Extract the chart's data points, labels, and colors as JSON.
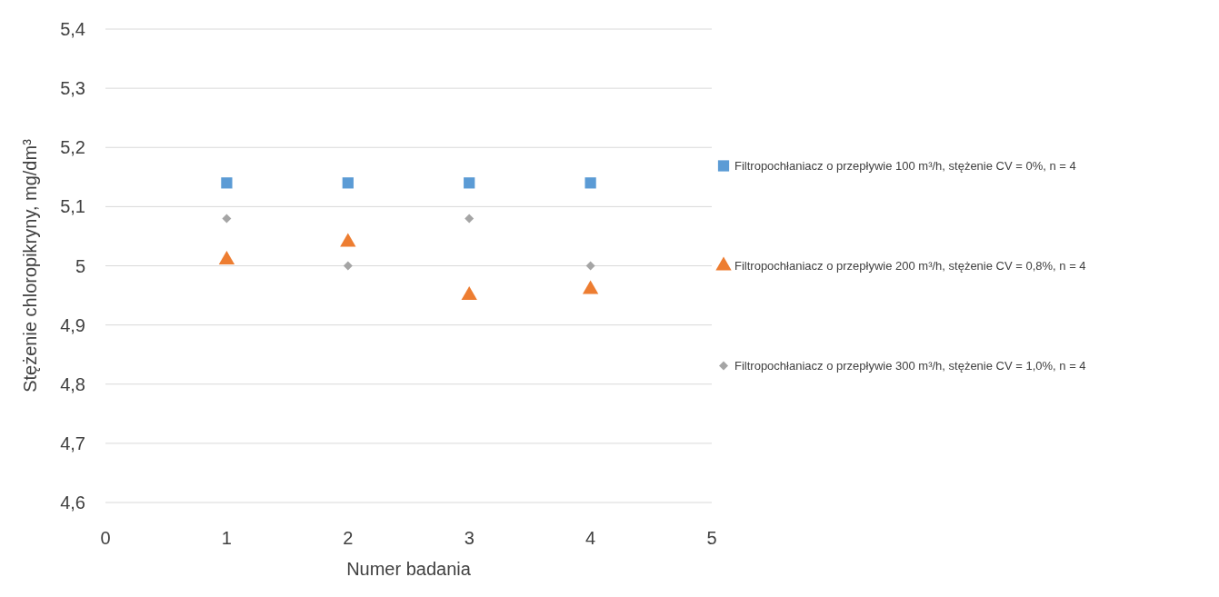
{
  "chart_data": {
    "type": "scatter",
    "xlabel": "Numer badania",
    "ylabel": "Stężenie chloropikryny, mg/dm³",
    "x": [
      1,
      2,
      3,
      4
    ],
    "series": [
      {
        "name": "Filtropochłaniacz o przepływie 100 m³/h, stężenie CV = 0%, n = 4",
        "color": "#5b9bd5",
        "marker": "square",
        "values": [
          5.14,
          5.14,
          5.14,
          5.14
        ]
      },
      {
        "name": "Filtropochłaniacz o przepływie 200 m³/h, stężenie CV = 0,8%, n = 4",
        "color": "#ed7d31",
        "marker": "triangle",
        "values": [
          5.01,
          5.04,
          4.95,
          4.96
        ]
      },
      {
        "name": "Filtropochłaniacz o przepływie 300 m³/h, stężenie CV = 1,0%, n = 4",
        "color": "#a5a5a5",
        "marker": "diamond",
        "values": [
          5.08,
          5.0,
          5.08,
          5.0
        ]
      }
    ],
    "xlim": [
      0,
      5
    ],
    "xticks": [
      0,
      1,
      2,
      3,
      4,
      5
    ],
    "ylim": [
      4.6,
      5.4
    ],
    "yticks": [
      {
        "value": 4.6,
        "label": "4,6"
      },
      {
        "value": 4.7,
        "label": "4,7"
      },
      {
        "value": 4.8,
        "label": "4,8"
      },
      {
        "value": 4.9,
        "label": "4,9"
      },
      5,
      {
        "value": 5.1,
        "label": "5,1"
      },
      {
        "value": 5.2,
        "label": "5,2"
      },
      {
        "value": 5.3,
        "label": "5,3"
      },
      {
        "value": 5.4,
        "label": "5,4"
      }
    ],
    "grid": "y",
    "legend": "right"
  }
}
